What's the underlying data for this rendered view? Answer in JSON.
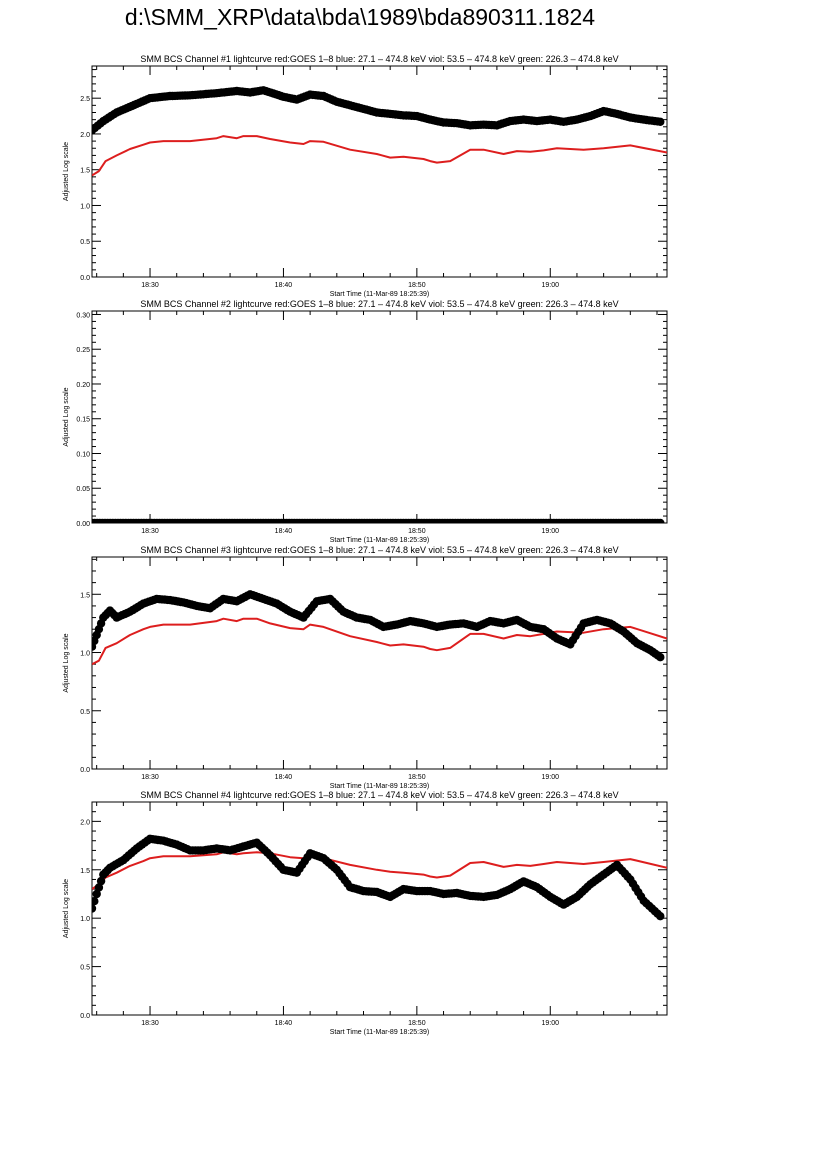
{
  "page": {
    "title": "d:\\SMM_XRP\\data\\bda\\1989\\bda890311.1824"
  },
  "colors": {
    "goes": "#dd1e1e",
    "bcs": "#000000",
    "axis": "#000000"
  },
  "chart_data": [
    {
      "type": "scatter",
      "title": "SMM BCS Channel #1 lightcurve  red:GOES 1–8  blue: 27.1 – 474.8 keV  viol: 53.5 – 474.8 keV  green: 226.3 – 474.8 keV",
      "xlabel": "Start Time (11-Mar-89 18:25:39)",
      "ylabel": "Adjusted Log scale",
      "xlim": [
        "18:25:39",
        "19:08:45"
      ],
      "ylim": [
        0,
        2.95
      ],
      "yticks": [
        0.0,
        0.5,
        1.0,
        1.5,
        2.0,
        2.5
      ],
      "ytick_labels": [
        "0.0",
        "0.5",
        "1.0",
        "1.5",
        "2.0",
        "2.5"
      ],
      "xticks": [
        "18:30",
        "18:40",
        "18:50",
        "19:00"
      ],
      "series": [
        {
          "style": "line",
          "color": "#dd1e1e",
          "x": [
            "18:25:39",
            "18:26:10",
            "18:26:40",
            "18:27:30",
            "18:28:30",
            "18:29:30",
            "18:30:00",
            "18:31:00",
            "18:33:00",
            "18:35:00",
            "18:35:30",
            "18:36:30",
            "18:37:00",
            "18:38:00",
            "18:39:00",
            "18:40:30",
            "18:41:30",
            "18:42:00",
            "18:43:00",
            "18:45:00",
            "18:47:00",
            "18:48:00",
            "18:49:00",
            "18:50:30",
            "18:51:00",
            "18:51:30",
            "18:52:30",
            "18:54:00",
            "18:55:00",
            "18:56:30",
            "18:57:30",
            "18:58:30",
            "18:59:30",
            "19:00:30",
            "19:02:30",
            "19:04:00",
            "19:06:00",
            "19:08:45"
          ],
          "y": [
            1.42,
            1.48,
            1.62,
            1.7,
            1.79,
            1.85,
            1.88,
            1.9,
            1.9,
            1.94,
            1.97,
            1.94,
            1.97,
            1.97,
            1.93,
            1.88,
            1.86,
            1.9,
            1.89,
            1.78,
            1.72,
            1.67,
            1.68,
            1.65,
            1.62,
            1.6,
            1.62,
            1.78,
            1.78,
            1.72,
            1.76,
            1.75,
            1.77,
            1.8,
            1.78,
            1.8,
            1.84,
            1.74
          ]
        },
        {
          "style": "markers",
          "color": "#000000",
          "x": [
            "18:25:39",
            "18:26:30",
            "18:27:30",
            "18:29:00",
            "18:30:00",
            "18:31:30",
            "18:33:00",
            "18:35:00",
            "18:36:30",
            "18:37:30",
            "18:38:30",
            "18:40:00",
            "18:41:00",
            "18:42:00",
            "18:43:00",
            "18:44:00",
            "18:45:00",
            "18:46:00",
            "18:47:00",
            "18:48:00",
            "18:49:00",
            "18:50:00",
            "18:51:00",
            "18:52:00",
            "18:53:00",
            "18:54:00",
            "18:55:00",
            "18:56:00",
            "18:57:00",
            "18:58:00",
            "18:59:00",
            "19:00:00",
            "19:01:00",
            "19:02:00",
            "19:03:00",
            "19:04:00",
            "19:05:00",
            "19:06:00",
            "19:07:00",
            "19:08:15"
          ],
          "y": [
            2.05,
            2.18,
            2.3,
            2.42,
            2.5,
            2.53,
            2.54,
            2.57,
            2.6,
            2.58,
            2.61,
            2.52,
            2.48,
            2.55,
            2.53,
            2.45,
            2.4,
            2.35,
            2.3,
            2.28,
            2.26,
            2.25,
            2.2,
            2.16,
            2.15,
            2.12,
            2.13,
            2.12,
            2.18,
            2.2,
            2.18,
            2.2,
            2.17,
            2.2,
            2.25,
            2.32,
            2.28,
            2.23,
            2.2,
            2.17
          ]
        }
      ]
    },
    {
      "type": "scatter",
      "title": "SMM BCS Channel #2 lightcurve  red:GOES 1–8  blue: 27.1 – 474.8 keV  viol: 53.5 – 474.8 keV  green: 226.3 – 474.8 keV",
      "xlabel": "Start Time (11-Mar-89 18:25:39)",
      "ylabel": "Adjusted Log scale",
      "xlim": [
        "18:25:39",
        "19:08:45"
      ],
      "ylim": [
        0,
        0.305
      ],
      "yticks": [
        0.0,
        0.05,
        0.1,
        0.15,
        0.2,
        0.25,
        0.3
      ],
      "ytick_labels": [
        "0.00",
        "0.05",
        "0.10",
        "0.15",
        "0.20",
        "0.25",
        "0.30"
      ],
      "xticks": [
        "18:30",
        "18:40",
        "18:50",
        "19:00"
      ],
      "series": [
        {
          "style": "markers",
          "color": "#000000",
          "x": [
            "18:25:39",
            "19:08:15"
          ],
          "y": [
            0.0,
            0.0
          ]
        }
      ]
    },
    {
      "type": "scatter",
      "title": "SMM BCS Channel #3 lightcurve  red:GOES 1–8  blue: 27.1 – 474.8 keV  viol: 53.5 – 474.8 keV  green: 226.3 – 474.8 keV",
      "xlabel": "Start Time (11-Mar-89 18:25:39)",
      "ylabel": "Adjusted Log scale",
      "xlim": [
        "18:25:39",
        "19:08:45"
      ],
      "ylim": [
        0,
        1.82
      ],
      "yticks": [
        0.0,
        0.5,
        1.0,
        1.5
      ],
      "ytick_labels": [
        "0.0",
        "0.5",
        "1.0",
        "1.5"
      ],
      "xticks": [
        "18:30",
        "18:40",
        "18:50",
        "19:00"
      ],
      "series": [
        {
          "style": "line",
          "color": "#dd1e1e",
          "x": [
            "18:25:39",
            "18:26:10",
            "18:26:40",
            "18:27:30",
            "18:28:30",
            "18:29:30",
            "18:30:00",
            "18:31:00",
            "18:33:00",
            "18:35:00",
            "18:35:30",
            "18:36:30",
            "18:37:00",
            "18:38:00",
            "18:39:00",
            "18:40:30",
            "18:41:30",
            "18:42:00",
            "18:43:00",
            "18:45:00",
            "18:47:00",
            "18:48:00",
            "18:49:00",
            "18:50:30",
            "18:51:00",
            "18:51:30",
            "18:52:30",
            "18:54:00",
            "18:55:00",
            "18:56:30",
            "18:57:30",
            "18:58:30",
            "18:59:30",
            "19:00:30",
            "19:02:30",
            "19:04:00",
            "19:06:00",
            "19:08:45"
          ],
          "y": [
            0.9,
            0.93,
            1.04,
            1.08,
            1.15,
            1.2,
            1.22,
            1.24,
            1.24,
            1.27,
            1.29,
            1.27,
            1.29,
            1.29,
            1.25,
            1.21,
            1.2,
            1.24,
            1.22,
            1.14,
            1.09,
            1.06,
            1.07,
            1.05,
            1.03,
            1.02,
            1.04,
            1.16,
            1.16,
            1.12,
            1.15,
            1.14,
            1.16,
            1.18,
            1.17,
            1.2,
            1.22,
            1.12
          ]
        },
        {
          "style": "markers",
          "color": "#000000",
          "x": [
            "18:25:39",
            "18:26:00",
            "18:26:30",
            "18:27:00",
            "18:27:30",
            "18:28:30",
            "18:29:30",
            "18:30:30",
            "18:31:30",
            "18:32:30",
            "18:33:30",
            "18:34:30",
            "18:35:30",
            "18:36:30",
            "18:37:30",
            "18:38:30",
            "18:39:30",
            "18:40:30",
            "18:41:30",
            "18:42:30",
            "18:43:30",
            "18:44:30",
            "18:45:30",
            "18:46:30",
            "18:47:30",
            "18:48:30",
            "18:49:30",
            "18:50:30",
            "18:51:30",
            "18:52:30",
            "18:53:30",
            "18:54:30",
            "18:55:30",
            "18:56:30",
            "18:57:30",
            "18:58:30",
            "18:59:30",
            "19:00:30",
            "19:01:30",
            "19:02:30",
            "19:03:30",
            "19:04:30",
            "19:05:30",
            "19:06:30",
            "19:07:30",
            "19:08:15"
          ],
          "y": [
            1.05,
            1.15,
            1.3,
            1.36,
            1.3,
            1.35,
            1.42,
            1.46,
            1.45,
            1.43,
            1.4,
            1.38,
            1.46,
            1.44,
            1.5,
            1.46,
            1.42,
            1.35,
            1.3,
            1.44,
            1.46,
            1.35,
            1.3,
            1.28,
            1.22,
            1.24,
            1.27,
            1.25,
            1.22,
            1.24,
            1.25,
            1.22,
            1.27,
            1.25,
            1.28,
            1.22,
            1.2,
            1.12,
            1.07,
            1.25,
            1.28,
            1.25,
            1.18,
            1.08,
            1.02,
            0.96
          ]
        }
      ]
    },
    {
      "type": "scatter",
      "title": "SMM BCS Channel #4 lightcurve  red:GOES 1–8  blue: 27.1 – 474.8 keV  viol: 53.5 – 474.8 keV  green: 226.3 – 474.8 keV",
      "xlabel": "Start Time (11-Mar-89 18:25:39)",
      "ylabel": "Adjusted Log scale",
      "xlim": [
        "18:25:39",
        "19:08:45"
      ],
      "ylim": [
        0,
        2.2
      ],
      "yticks": [
        0.0,
        0.5,
        1.0,
        1.5,
        2.0
      ],
      "ytick_labels": [
        "0.0",
        "0.5",
        "1.0",
        "1.5",
        "2.0"
      ],
      "xticks": [
        "18:30",
        "18:40",
        "18:50",
        "19:00"
      ],
      "series": [
        {
          "style": "line",
          "color": "#dd1e1e",
          "x": [
            "18:25:39",
            "18:26:10",
            "18:26:40",
            "18:27:30",
            "18:28:30",
            "18:29:30",
            "18:30:00",
            "18:31:00",
            "18:33:00",
            "18:35:00",
            "18:35:30",
            "18:36:30",
            "18:37:00",
            "18:38:00",
            "18:39:00",
            "18:40:30",
            "18:41:30",
            "18:42:00",
            "18:43:00",
            "18:45:00",
            "18:47:00",
            "18:48:00",
            "18:49:00",
            "18:50:30",
            "18:51:00",
            "18:51:30",
            "18:52:30",
            "18:54:00",
            "18:55:00",
            "18:56:30",
            "18:57:30",
            "18:58:30",
            "18:59:30",
            "19:00:30",
            "19:02:30",
            "19:04:00",
            "19:06:00",
            "19:08:45"
          ],
          "y": [
            1.3,
            1.35,
            1.42,
            1.47,
            1.54,
            1.59,
            1.62,
            1.64,
            1.64,
            1.66,
            1.68,
            1.66,
            1.67,
            1.68,
            1.67,
            1.63,
            1.62,
            1.64,
            1.62,
            1.55,
            1.5,
            1.48,
            1.47,
            1.45,
            1.43,
            1.42,
            1.44,
            1.57,
            1.58,
            1.53,
            1.55,
            1.54,
            1.56,
            1.58,
            1.56,
            1.58,
            1.61,
            1.52
          ]
        },
        {
          "style": "markers",
          "color": "#000000",
          "x": [
            "18:25:39",
            "18:26:00",
            "18:26:30",
            "18:27:00",
            "18:28:00",
            "18:29:00",
            "18:30:00",
            "18:31:00",
            "18:32:00",
            "18:33:00",
            "18:34:00",
            "18:35:00",
            "18:36:00",
            "18:37:00",
            "18:38:00",
            "18:39:00",
            "18:40:00",
            "18:41:00",
            "18:42:00",
            "18:43:00",
            "18:44:00",
            "18:45:00",
            "18:46:00",
            "18:47:00",
            "18:48:00",
            "18:49:00",
            "18:50:00",
            "18:51:00",
            "18:52:00",
            "18:53:00",
            "18:54:00",
            "18:55:00",
            "18:56:00",
            "18:57:00",
            "18:58:00",
            "18:59:00",
            "19:00:00",
            "19:01:00",
            "19:02:00",
            "19:03:00",
            "19:04:00",
            "19:05:00",
            "19:06:00",
            "19:07:00",
            "19:08:15"
          ],
          "y": [
            1.1,
            1.25,
            1.45,
            1.52,
            1.6,
            1.72,
            1.82,
            1.8,
            1.76,
            1.7,
            1.7,
            1.72,
            1.7,
            1.74,
            1.78,
            1.65,
            1.5,
            1.47,
            1.67,
            1.62,
            1.5,
            1.32,
            1.28,
            1.27,
            1.22,
            1.3,
            1.28,
            1.28,
            1.25,
            1.26,
            1.23,
            1.22,
            1.24,
            1.3,
            1.38,
            1.32,
            1.22,
            1.14,
            1.22,
            1.35,
            1.45,
            1.55,
            1.4,
            1.18,
            1.02
          ]
        }
      ]
    }
  ]
}
